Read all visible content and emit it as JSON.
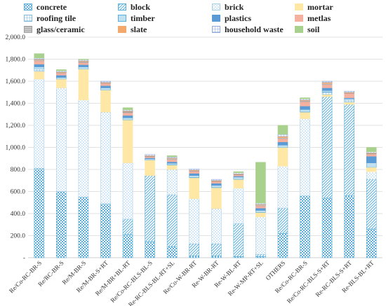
{
  "chart_data": {
    "type": "bar",
    "stacked": true,
    "title": "",
    "xlabel": "",
    "ylabel": "",
    "ylim": [
      0,
      2000
    ],
    "yticks": [
      "-",
      "200.0",
      "400.0",
      "600.0",
      "800.0",
      "1,000.0",
      "1,200.0",
      "1,400.0",
      "1,600.0",
      "1,800.0",
      "2,000.0"
    ],
    "grid": true,
    "legend_position": "top",
    "categories": [
      "Re/Co-RC-BR-S",
      "Re/RC-BR-S",
      "Re/M-BR-S",
      "Re/M-BR-S+RT",
      "Re/M-BR+BL-RT",
      "Re/Co-RC-BLS-BL-S",
      "Re-RC-BLS-BL-RT+SL",
      "Re/Co-W-BR-RT",
      "Re-W-BR-RT",
      "Re-W-BL-RT",
      "Re-W-MP-RT+SL",
      "OTHERS",
      "Re/Co-RC-BR-S",
      "Re/Co-RC-BLS-S+RT",
      "Re-RC-BLS-S+RT",
      "Re-BLS-BL+RT"
    ],
    "series": [
      {
        "name": "concrete",
        "values": [
          810,
          600,
          550,
          490,
          210,
          145,
          100,
          15,
          15,
          10,
          10,
          220,
          560,
          540,
          560,
          260
        ]
      },
      {
        "name": "block",
        "values": [
          0,
          0,
          0,
          0,
          140,
          600,
          470,
          110,
          110,
          300,
          20,
          230,
          0,
          920,
          830,
          450
        ]
      },
      {
        "name": "brick",
        "values": [
          810,
          940,
          880,
          830,
          510,
          0,
          230,
          410,
          320,
          320,
          340,
          380,
          700,
          0,
          0,
          70
        ]
      },
      {
        "name": "mortar",
        "values": [
          70,
          80,
          280,
          200,
          390,
          140,
          40,
          190,
          190,
          80,
          40,
          170,
          60,
          20,
          20,
          40
        ]
      },
      {
        "name": "roofing tile",
        "values": [
          20,
          0,
          0,
          0,
          0,
          0,
          0,
          0,
          0,
          0,
          0,
          0,
          0,
          20,
          20,
          0
        ]
      },
      {
        "name": "timber",
        "values": [
          20,
          15,
          20,
          20,
          20,
          10,
          15,
          20,
          20,
          20,
          20,
          20,
          25,
          15,
          10,
          40
        ]
      },
      {
        "name": "plastics",
        "values": [
          25,
          20,
          20,
          20,
          20,
          10,
          15,
          20,
          20,
          10,
          20,
          30,
          30,
          25,
          10,
          60
        ]
      },
      {
        "name": "metlas",
        "values": [
          30,
          20,
          20,
          20,
          25,
          10,
          20,
          20,
          15,
          10,
          20,
          30,
          40,
          30,
          40,
          20
        ]
      },
      {
        "name": "glass/ceramic",
        "values": [
          10,
          5,
          10,
          5,
          10,
          5,
          10,
          5,
          5,
          5,
          10,
          10,
          10,
          10,
          5,
          5
        ]
      },
      {
        "name": "slate",
        "values": [
          5,
          5,
          5,
          5,
          5,
          5,
          5,
          5,
          5,
          5,
          5,
          10,
          5,
          10,
          5,
          5
        ]
      },
      {
        "name": "household waste",
        "values": [
          10,
          10,
          10,
          10,
          10,
          10,
          10,
          10,
          10,
          10,
          10,
          20,
          10,
          10,
          10,
          10
        ]
      },
      {
        "name": "soil",
        "values": [
          40,
          10,
          5,
          0,
          20,
          0,
          10,
          0,
          0,
          10,
          370,
          80,
          10,
          0,
          0,
          40
        ]
      }
    ]
  },
  "colors": {
    "concrete": "#5aaed8",
    "block": "#5aaed8",
    "brick": "#a8cfe8",
    "mortar": "#ffe7a6",
    "roofing tile": "#7fb9de",
    "timber": "#5aaed8",
    "plastics": "#5b9bd5",
    "metlas": "#f4b1a0",
    "glass/ceramic": "#9e9e9e",
    "slate": "#f5a86b",
    "household waste": "#8eaadb",
    "soil": "#a9d18e",
    "grid": "#d9d9d9",
    "axis": "#bfbfbf"
  }
}
